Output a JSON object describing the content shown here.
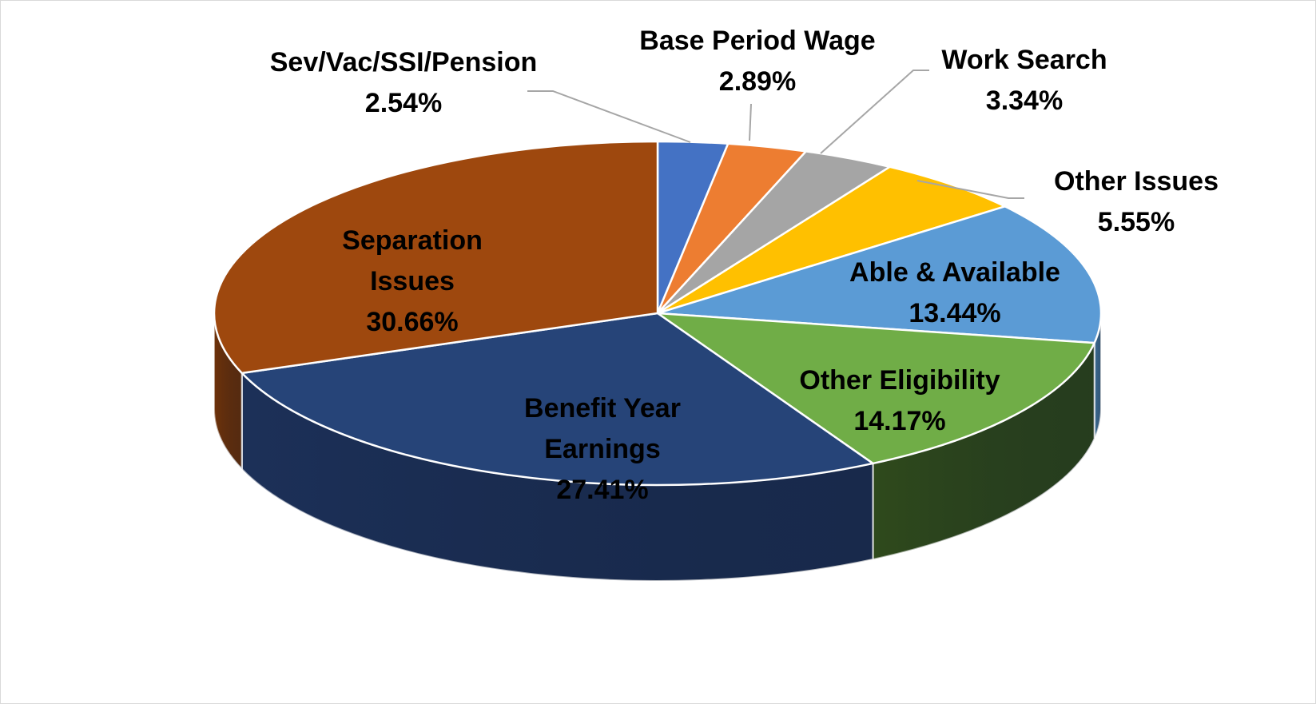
{
  "chart_data": {
    "type": "pie",
    "style": "3d-pie",
    "legend": "none",
    "categories": [
      "Sev/Vac/SSI/Pension",
      "Base Period Wage",
      "Work Search",
      "Other Issues",
      "Able & Available",
      "Other Eligibility",
      "Benefit Year Earnings",
      "Separation Issues"
    ],
    "values": [
      2.54,
      2.89,
      3.34,
      5.55,
      13.44,
      14.17,
      27.41,
      30.66
    ],
    "data_labels": [
      [
        "Sev/Vac/SSI/Pension",
        "2.54%"
      ],
      [
        "Base Period Wage",
        "2.89%"
      ],
      [
        "Work Search",
        "3.34%"
      ],
      [
        "Other Issues",
        "5.55%"
      ],
      [
        "Able & Available",
        "13.44%"
      ],
      [
        "Other Eligibility",
        "14.17%"
      ],
      [
        "Benefit Year",
        "Earnings",
        "27.41%"
      ],
      [
        "Separation",
        "Issues",
        "30.66%"
      ]
    ],
    "colors": [
      "#4472c4",
      "#ed7d31",
      "#a5a5a5",
      "#ffc000",
      "#5b9bd5",
      "#70ad47",
      "#264478",
      "#9e480e"
    ],
    "side_colors": [
      "#2f4f87",
      "#a65823",
      "#747474",
      "#b38700",
      "#3f6e96",
      "#2f4a1c",
      "#1c3058",
      "#6e320a"
    ],
    "unit": "%"
  }
}
